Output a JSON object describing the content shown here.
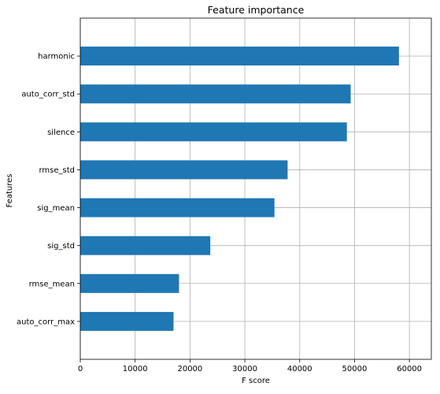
{
  "chart_data": {
    "type": "bar",
    "orientation": "horizontal",
    "title": "Feature importance",
    "xlabel": "F score",
    "ylabel": "Features",
    "categories": [
      "harmonic",
      "auto_corr_std",
      "silence",
      "rmse_std",
      "sig_mean",
      "sig_std",
      "rmse_mean",
      "auto_corr_max"
    ],
    "values": [
      58100,
      49300,
      48600,
      37800,
      35400,
      23700,
      18000,
      17000
    ],
    "xlim": [
      0,
      64000
    ],
    "xticks": [
      0,
      10000,
      20000,
      30000,
      40000,
      50000,
      60000
    ],
    "grid": true,
    "colors": {
      "bar": "#1f77b4",
      "grid": "#b0b0b0",
      "axis": "#000000"
    }
  }
}
